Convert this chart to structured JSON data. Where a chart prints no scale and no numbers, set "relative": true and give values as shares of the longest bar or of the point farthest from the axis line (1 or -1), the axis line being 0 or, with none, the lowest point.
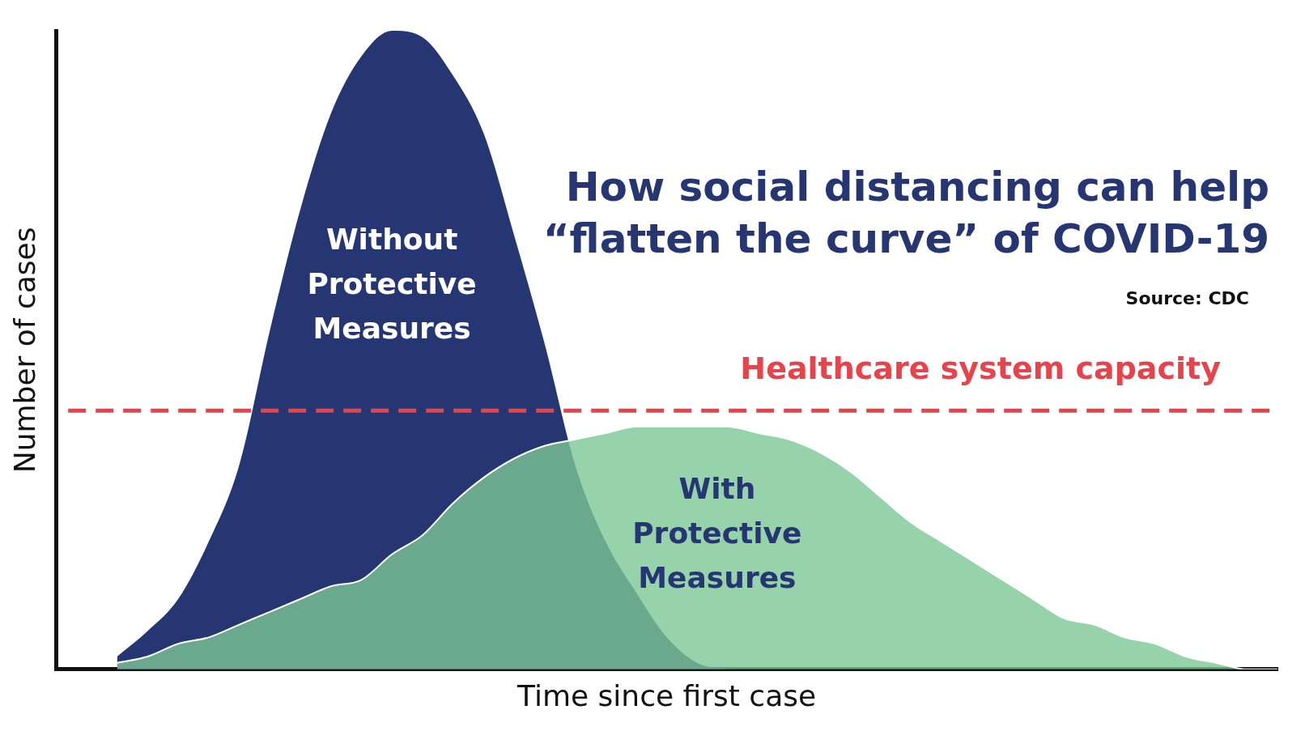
{
  "chart_data": {
    "type": "area",
    "relative": true,
    "title": "How social distancing can help “flatten the curve” of COVID-19",
    "xlabel": "Time since first case",
    "ylabel": "Number of cases",
    "annotations": [
      "Source: CDC"
    ],
    "categories": [
      null,
      null,
      null,
      null,
      null,
      null,
      null,
      null,
      null,
      null,
      null,
      null,
      null,
      null,
      null,
      null,
      null,
      null,
      null,
      null,
      null,
      null,
      null,
      null,
      null,
      null,
      null,
      null,
      null,
      null,
      null,
      null,
      null,
      null,
      null,
      null,
      null,
      null,
      null,
      null,
      null
    ],
    "series": [
      {
        "name": "Without Protective Measures",
        "color": "#253672",
        "values": [
          null,
          null,
          0.02,
          0.06,
          0.11,
          0.2,
          0.32,
          0.53,
          0.72,
          0.87,
          0.96,
          1,
          0.99,
          0.93,
          0.84,
          0.68,
          0.51,
          0.32,
          0.2,
          0.12,
          0.05,
          0.01,
          0,
          null,
          null,
          null,
          null,
          null,
          null,
          null,
          null,
          null,
          null,
          null,
          null,
          null,
          null,
          null,
          null,
          null,
          null
        ]
      },
      {
        "name": "With Protective Measures",
        "color": "#7cc795",
        "values": [
          null,
          null,
          0.01,
          0.02,
          0.04,
          0.05,
          0.07,
          0.09,
          0.11,
          0.13,
          0.14,
          0.18,
          0.21,
          0.26,
          0.3,
          0.33,
          0.35,
          0.36,
          0.37,
          0.38,
          0.38,
          0.38,
          0.38,
          0.37,
          0.36,
          0.34,
          0.31,
          0.27,
          0.23,
          0.2,
          0.17,
          0.14,
          0.11,
          0.08,
          0.07,
          0.05,
          0.04,
          0.02,
          0.01,
          0,
          0
        ]
      }
    ],
    "ref_lines": [
      {
        "axis": "y",
        "value": 0.405,
        "label": "Healthcare system capacity",
        "color": "#e8434a",
        "line_style": "dashed"
      }
    ],
    "grid": false,
    "legend": false
  }
}
